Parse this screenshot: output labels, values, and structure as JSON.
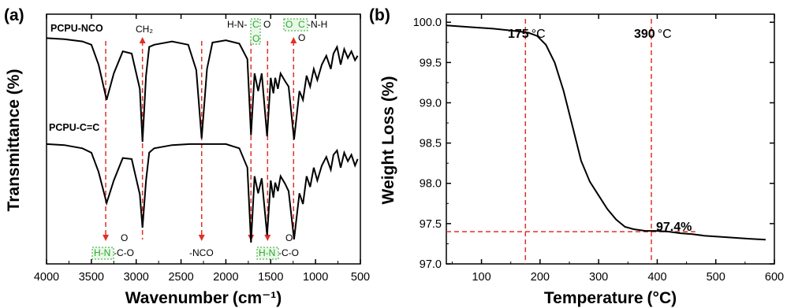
{
  "colors": {
    "line": "#000000",
    "guide": "#e0302a",
    "highlight": "#2aa82a",
    "highlight_fill": "#eaf8ea"
  },
  "chart_data": [
    {
      "panel": "(a)",
      "type": "line",
      "xlabel": "Wavenumber",
      "xunit": "(cm⁻¹)",
      "ylabel": "Transmittance (%)",
      "xlim": [
        4000,
        500
      ],
      "x_reversed": true,
      "xticks": [
        "4000",
        "3500",
        "3000",
        "2500",
        "2000",
        "1500",
        "1000",
        "500"
      ],
      "y_tick_labels": false,
      "series": [
        {
          "name": "PCPU-NCO",
          "points": [
            [
              4000,
              0.94
            ],
            [
              3800,
              0.93
            ],
            [
              3600,
              0.91
            ],
            [
              3500,
              0.88
            ],
            [
              3420,
              0.7
            ],
            [
              3330,
              0.38
            ],
            [
              3250,
              0.62
            ],
            [
              3150,
              0.82
            ],
            [
              3050,
              0.8
            ],
            [
              2960,
              0.48
            ],
            [
              2930,
              0.0
            ],
            [
              2890,
              0.6
            ],
            [
              2855,
              0.86
            ],
            [
              2800,
              0.88
            ],
            [
              2600,
              0.91
            ],
            [
              2420,
              0.88
            ],
            [
              2330,
              0.65
            ],
            [
              2270,
              0.03
            ],
            [
              2210,
              0.66
            ],
            [
              2150,
              0.9
            ],
            [
              2000,
              0.92
            ],
            [
              1850,
              0.89
            ],
            [
              1760,
              0.75
            ],
            [
              1720,
              0.06
            ],
            [
              1680,
              0.62
            ],
            [
              1640,
              0.46
            ],
            [
              1600,
              0.62
            ],
            [
              1540,
              0.05
            ],
            [
              1500,
              0.58
            ],
            [
              1470,
              0.44
            ],
            [
              1450,
              0.58
            ],
            [
              1420,
              0.48
            ],
            [
              1390,
              0.62
            ],
            [
              1340,
              0.55
            ],
            [
              1300,
              0.5
            ],
            [
              1240,
              0.02
            ],
            [
              1180,
              0.46
            ],
            [
              1140,
              0.38
            ],
            [
              1100,
              0.6
            ],
            [
              1060,
              0.5
            ],
            [
              1020,
              0.66
            ],
            [
              980,
              0.56
            ],
            [
              930,
              0.7
            ],
            [
              880,
              0.78
            ],
            [
              830,
              0.66
            ],
            [
              800,
              0.8
            ],
            [
              760,
              0.86
            ],
            [
              720,
              0.7
            ],
            [
              680,
              0.84
            ],
            [
              640,
              0.76
            ],
            [
              600,
              0.82
            ],
            [
              560,
              0.74
            ],
            [
              530,
              0.78
            ]
          ]
        },
        {
          "name": "PCPU-C=C",
          "points": [
            [
              4000,
              0.92
            ],
            [
              3800,
              0.91
            ],
            [
              3600,
              0.88
            ],
            [
              3500,
              0.84
            ],
            [
              3420,
              0.66
            ],
            [
              3330,
              0.37
            ],
            [
              3250,
              0.58
            ],
            [
              3150,
              0.79
            ],
            [
              3050,
              0.78
            ],
            [
              2960,
              0.45
            ],
            [
              2930,
              0.14
            ],
            [
              2890,
              0.58
            ],
            [
              2855,
              0.84
            ],
            [
              2800,
              0.88
            ],
            [
              2600,
              0.91
            ],
            [
              2400,
              0.92
            ],
            [
              2200,
              0.92
            ],
            [
              2000,
              0.92
            ],
            [
              1850,
              0.88
            ],
            [
              1760,
              0.7
            ],
            [
              1720,
              0.0
            ],
            [
              1680,
              0.62
            ],
            [
              1640,
              0.46
            ],
            [
              1600,
              0.6
            ],
            [
              1540,
              0.07
            ],
            [
              1500,
              0.58
            ],
            [
              1470,
              0.42
            ],
            [
              1450,
              0.56
            ],
            [
              1420,
              0.48
            ],
            [
              1390,
              0.62
            ],
            [
              1340,
              0.55
            ],
            [
              1300,
              0.48
            ],
            [
              1240,
              0.03
            ],
            [
              1180,
              0.46
            ],
            [
              1140,
              0.36
            ],
            [
              1100,
              0.62
            ],
            [
              1060,
              0.52
            ],
            [
              1020,
              0.7
            ],
            [
              980,
              0.58
            ],
            [
              930,
              0.72
            ],
            [
              880,
              0.8
            ],
            [
              830,
              0.68
            ],
            [
              800,
              0.82
            ],
            [
              760,
              0.86
            ],
            [
              720,
              0.7
            ],
            [
              680,
              0.84
            ],
            [
              640,
              0.76
            ],
            [
              600,
              0.82
            ],
            [
              560,
              0.72
            ],
            [
              530,
              0.78
            ]
          ]
        }
      ],
      "guide_lines_x": [
        3340,
        2930,
        2270,
        1720,
        1535,
        1245
      ],
      "peak_labels": {
        "ch2": "CH₂",
        "nco_top_prefix": "H-N-",
        "nco_top_c": "C",
        "nco_top_o": "O",
        "ester_o": "O",
        "ester_c": "C",
        "ester_suffix": "-N-H",
        "ester_dbl_o": "O",
        "bottom_hn": "H-N",
        "bottom_c": "-C-O",
        "bottom_o": "O",
        "nco_minus": "-NCO",
        "bottom_hn_2": "H-N",
        "bottom_c_2": "-C-O",
        "bottom_o_2": "O"
      }
    },
    {
      "panel": "(b)",
      "type": "line",
      "xlabel": "Temperature",
      "xunit": "(°C)",
      "ylabel": "Weight Loss (%)",
      "xlim": [
        40,
        600
      ],
      "ylim": [
        97.0,
        100.1
      ],
      "xticks": [
        100,
        200,
        300,
        400,
        500,
        600
      ],
      "yticks": [
        "97.0",
        "97.5",
        "98.0",
        "98.5",
        "99.0",
        "99.5",
        "100.0"
      ],
      "series": [
        {
          "points": [
            [
              40,
              99.96
            ],
            [
              80,
              99.94
            ],
            [
              120,
              99.92
            ],
            [
              160,
              99.89
            ],
            [
              180,
              99.87
            ],
            [
              195,
              99.83
            ],
            [
              210,
              99.72
            ],
            [
              225,
              99.5
            ],
            [
              240,
              99.15
            ],
            [
              255,
              98.72
            ],
            [
              270,
              98.28
            ],
            [
              285,
              98.02
            ],
            [
              300,
              97.85
            ],
            [
              315,
              97.68
            ],
            [
              330,
              97.55
            ],
            [
              345,
              97.46
            ],
            [
              360,
              97.43
            ],
            [
              380,
              97.41
            ],
            [
              400,
              97.41
            ],
            [
              420,
              97.4
            ],
            [
              440,
              97.38
            ],
            [
              460,
              97.37
            ],
            [
              480,
              97.35
            ],
            [
              500,
              97.34
            ],
            [
              520,
              97.33
            ],
            [
              540,
              97.32
            ],
            [
              560,
              97.31
            ],
            [
              585,
              97.3
            ]
          ]
        }
      ],
      "guide_vertical": [
        175,
        390
      ],
      "guide_horizontal": 97.4,
      "annotations": {
        "t1": "175",
        "t2": "390",
        "deg": "°C",
        "residue": "97.4%"
      }
    }
  ]
}
